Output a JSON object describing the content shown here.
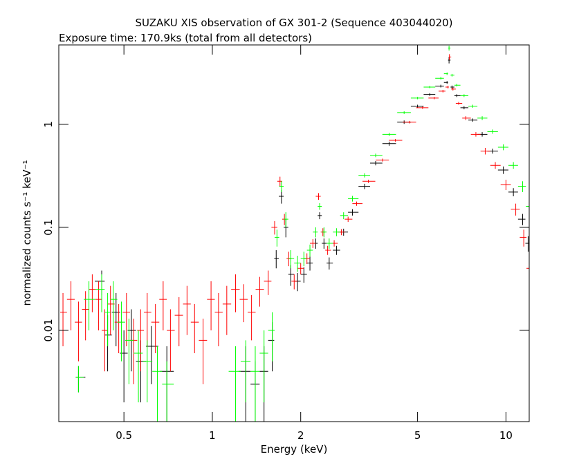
{
  "chart_data": {
    "type": "scatter",
    "title": "SUZAKU XIS observation of GX 301-2 (Sequence 403044020)",
    "subtitle": "Exposure time: 170.9ks (total from all detectors)",
    "x_label": "Energy (keV)",
    "y_label": "normalized counts s⁻¹ keV⁻¹",
    "xscale": "log",
    "yscale": "log",
    "xlim": [
      0.3,
      12
    ],
    "ylim": [
      0.0013,
      5.9
    ],
    "xticks": [
      0.5,
      1,
      2,
      5,
      10
    ],
    "yticks": [
      0.01,
      0.1,
      1
    ],
    "series": [
      {
        "color": "#000000",
        "x": [
          0.35,
          0.42,
          0.44,
          0.47,
          0.5,
          0.53,
          0.57,
          0.62,
          0.7,
          1.3,
          1.4,
          1.5,
          1.6,
          1.65,
          1.72,
          1.78,
          1.85,
          1.95,
          2.05,
          2.15,
          2.25,
          2.32,
          2.4,
          2.5,
          2.65,
          2.8,
          3.0,
          3.3,
          3.6,
          4.0,
          4.5,
          5.0,
          5.5,
          6.0,
          6.3,
          6.4,
          6.55,
          6.8,
          7.2,
          7.7,
          8.3,
          9.0,
          9.8,
          10.6,
          11.4,
          11.9
        ],
        "values": [
          0.0035,
          0.03,
          0.009,
          0.015,
          0.006,
          0.01,
          0.005,
          0.007,
          0.004,
          0.004,
          0.003,
          0.004,
          0.008,
          0.05,
          0.2,
          0.1,
          0.035,
          0.03,
          0.035,
          0.045,
          0.07,
          0.13,
          0.07,
          0.045,
          0.06,
          0.09,
          0.14,
          0.25,
          0.42,
          0.65,
          1.05,
          1.5,
          1.95,
          2.35,
          2.55,
          4.2,
          2.3,
          1.9,
          1.45,
          1.1,
          0.8,
          0.55,
          0.36,
          0.22,
          0.12,
          0.07
        ],
        "yerr": [
          0.001,
          0.008,
          0.005,
          0.008,
          0.004,
          0.006,
          0.003,
          0.004,
          0.003,
          0.003,
          0.002,
          0.003,
          0.004,
          0.01,
          0.03,
          0.02,
          0.008,
          0.006,
          0.006,
          0.007,
          0.008,
          0.01,
          0.008,
          0.006,
          0.006,
          0.007,
          0.01,
          0.015,
          0.02,
          0.03,
          0.04,
          0.05,
          0.06,
          0.07,
          0.08,
          0.3,
          0.08,
          0.06,
          0.05,
          0.04,
          0.04,
          0.03,
          0.03,
          0.02,
          0.015,
          0.012
        ]
      },
      {
        "color": "#ff0000",
        "x": [
          0.31,
          0.33,
          0.35,
          0.37,
          0.39,
          0.41,
          0.43,
          0.45,
          0.48,
          0.51,
          0.54,
          0.57,
          0.6,
          0.64,
          0.68,
          0.72,
          0.77,
          0.82,
          0.87,
          0.93,
          0.99,
          1.05,
          1.12,
          1.2,
          1.28,
          1.36,
          1.45,
          1.55,
          1.63,
          1.7,
          1.76,
          1.82,
          1.9,
          2.0,
          2.1,
          2.2,
          2.3,
          2.38,
          2.47,
          2.6,
          2.75,
          2.9,
          3.1,
          3.4,
          3.8,
          4.2,
          4.7,
          5.2,
          5.7,
          6.1,
          6.35,
          6.42,
          6.6,
          6.9,
          7.3,
          7.9,
          8.5,
          9.2,
          10.0,
          10.8,
          11.5,
          12.0
        ],
        "values": [
          0.015,
          0.02,
          0.012,
          0.016,
          0.025,
          0.02,
          0.01,
          0.018,
          0.012,
          0.015,
          0.008,
          0.01,
          0.015,
          0.012,
          0.02,
          0.01,
          0.014,
          0.018,
          0.012,
          0.008,
          0.02,
          0.015,
          0.018,
          0.025,
          0.02,
          0.015,
          0.025,
          0.03,
          0.1,
          0.28,
          0.12,
          0.05,
          0.03,
          0.04,
          0.05,
          0.07,
          0.2,
          0.09,
          0.06,
          0.07,
          0.09,
          0.12,
          0.17,
          0.28,
          0.45,
          0.7,
          1.05,
          1.45,
          1.8,
          2.1,
          2.3,
          4.5,
          2.2,
          1.6,
          1.15,
          0.8,
          0.55,
          0.4,
          0.26,
          0.15,
          0.08,
          0.04
        ],
        "yerr": [
          0.008,
          0.01,
          0.007,
          0.008,
          0.01,
          0.01,
          0.006,
          0.009,
          0.006,
          0.008,
          0.005,
          0.006,
          0.008,
          0.006,
          0.01,
          0.006,
          0.007,
          0.009,
          0.006,
          0.005,
          0.01,
          0.008,
          0.009,
          0.01,
          0.008,
          0.007,
          0.008,
          0.008,
          0.015,
          0.03,
          0.015,
          0.008,
          0.005,
          0.005,
          0.006,
          0.007,
          0.015,
          0.008,
          0.006,
          0.005,
          0.006,
          0.007,
          0.008,
          0.01,
          0.015,
          0.02,
          0.03,
          0.04,
          0.05,
          0.06,
          0.07,
          0.3,
          0.07,
          0.05,
          0.05,
          0.04,
          0.04,
          0.03,
          0.03,
          0.02,
          0.015,
          0.012
        ]
      },
      {
        "color": "#00ff00",
        "x": [
          0.35,
          0.38,
          0.42,
          0.44,
          0.46,
          0.49,
          0.52,
          0.56,
          0.6,
          0.65,
          0.7,
          1.2,
          1.3,
          1.4,
          1.5,
          1.6,
          1.66,
          1.72,
          1.78,
          1.85,
          1.95,
          2.05,
          2.15,
          2.25,
          2.32,
          2.4,
          2.5,
          2.65,
          2.8,
          3.0,
          3.3,
          3.6,
          4.0,
          4.5,
          5.0,
          5.5,
          6.0,
          6.3,
          6.4,
          6.55,
          6.8,
          7.2,
          7.7,
          8.3,
          9.0,
          9.8,
          10.6,
          11.4,
          12.0
        ],
        "values": [
          0.0035,
          0.02,
          0.025,
          0.015,
          0.02,
          0.012,
          0.008,
          0.006,
          0.005,
          0.004,
          0.003,
          0.004,
          0.005,
          0.004,
          0.006,
          0.01,
          0.08,
          0.25,
          0.12,
          0.05,
          0.045,
          0.05,
          0.06,
          0.09,
          0.16,
          0.09,
          0.07,
          0.09,
          0.13,
          0.19,
          0.32,
          0.5,
          0.8,
          1.3,
          1.8,
          2.3,
          2.8,
          3.1,
          5.5,
          3.0,
          2.4,
          1.9,
          1.5,
          1.15,
          0.85,
          0.6,
          0.4,
          0.25,
          0.16
        ],
        "yerr": [
          0.001,
          0.01,
          0.01,
          0.008,
          0.01,
          0.007,
          0.005,
          0.004,
          0.003,
          0.003,
          0.002,
          0.003,
          0.003,
          0.003,
          0.004,
          0.005,
          0.015,
          0.03,
          0.02,
          0.01,
          0.008,
          0.008,
          0.008,
          0.01,
          0.012,
          0.01,
          0.008,
          0.008,
          0.01,
          0.012,
          0.015,
          0.02,
          0.03,
          0.04,
          0.05,
          0.06,
          0.08,
          0.09,
          0.3,
          0.09,
          0.07,
          0.06,
          0.05,
          0.05,
          0.04,
          0.04,
          0.03,
          0.03,
          0.02
        ]
      }
    ]
  }
}
